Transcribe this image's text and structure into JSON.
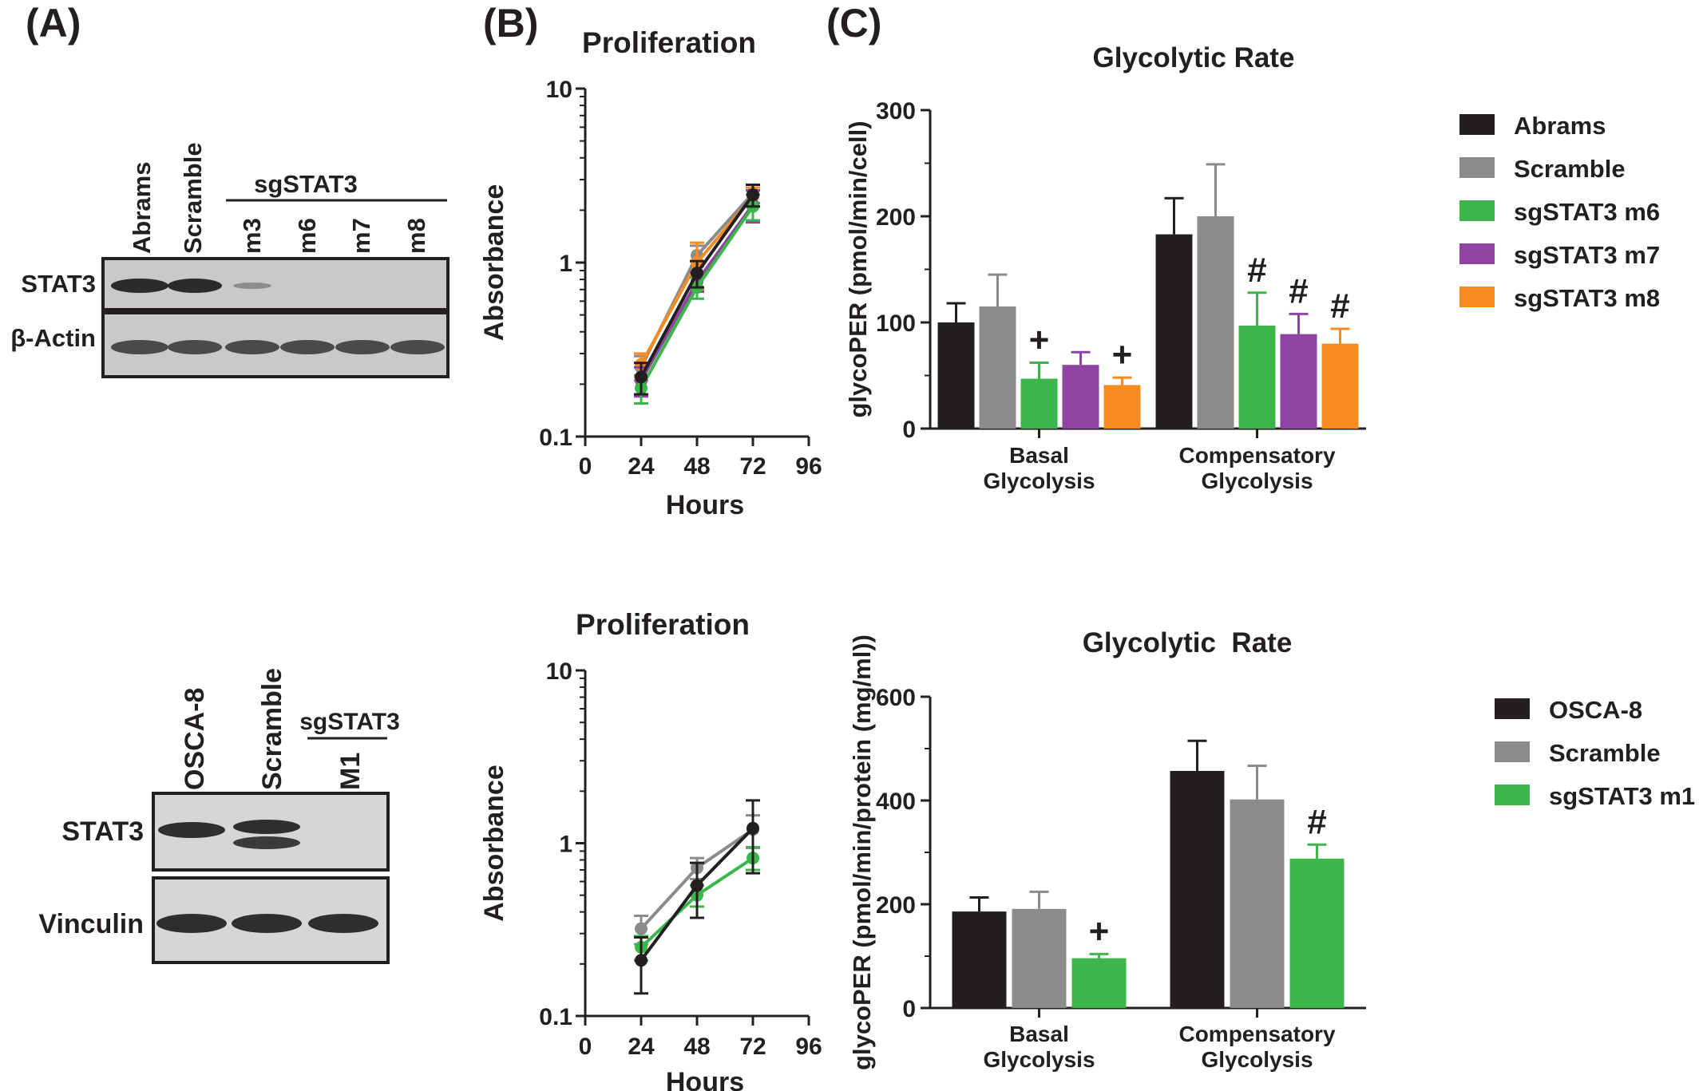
{
  "panel_labels": [
    "(A)",
    "(B)",
    "(C)"
  ],
  "blot_top": {
    "lane_labels": [
      "Abrams",
      "Scramble",
      "m3",
      "m6",
      "m7",
      "m8"
    ],
    "group_label": "sgSTAT3",
    "row_labels": [
      "STAT3",
      "β-Actin"
    ]
  },
  "blot_bottom": {
    "lane_labels": [
      "OSCA-8",
      "Scramble",
      "M1"
    ],
    "group_label": "sgSTAT3",
    "row_labels": [
      "STAT3",
      "Vinculin"
    ]
  },
  "colors": {
    "black": "#231f20",
    "gray": "#8a8b8b",
    "green": "#3cb64a",
    "purple": "#8e44a0",
    "orange": "#f68b1f"
  },
  "chart_data": [
    {
      "id": "proliferation_top",
      "type": "line",
      "title": "Proliferation",
      "xlabel": "Hours",
      "ylabel": "Absorbance",
      "xlim": [
        0,
        96
      ],
      "xticks": [
        0,
        24,
        48,
        72,
        96
      ],
      "ylim": [
        0.1,
        10
      ],
      "yscale": "log",
      "yticks": [
        0.1,
        1,
        10
      ],
      "yticklabels": [
        "0.1",
        "1",
        "10"
      ],
      "x": [
        24,
        48,
        72
      ],
      "series": [
        {
          "color": "#8a8b8b",
          "values": [
            0.25,
            1.1,
            2.5
          ],
          "err": [
            0.04,
            0.15,
            0.3
          ]
        },
        {
          "color": "#f68b1f",
          "values": [
            0.26,
            1.0,
            2.4
          ],
          "err": [
            0.04,
            0.3,
            0.3
          ]
        },
        {
          "color": "#8e44a0",
          "values": [
            0.21,
            0.78,
            2.15
          ],
          "err": [
            0.04,
            0.1,
            0.45
          ]
        },
        {
          "color": "#3cb64a",
          "values": [
            0.19,
            0.72,
            2.1
          ],
          "err": [
            0.035,
            0.1,
            0.35
          ]
        },
        {
          "color": "#231f20",
          "values": [
            0.22,
            0.87,
            2.45
          ],
          "err": [
            0.045,
            0.15,
            0.35
          ]
        }
      ]
    },
    {
      "id": "glycolytic_top",
      "type": "bar",
      "title": "Glycolytic Rate",
      "ylabel": "glycoPER (pmol/min/cell)",
      "ylim": [
        0,
        300
      ],
      "yticks": [
        0,
        100,
        200,
        300
      ],
      "categories": [
        "Basal\nGlycolysis",
        "Compensatory\nGlycolysis"
      ],
      "legend_position": "right",
      "series": [
        {
          "name": "Abrams",
          "color": "#231f20",
          "values": [
            100,
            183
          ],
          "err": [
            18,
            34
          ]
        },
        {
          "name": "Scramble",
          "color": "#8a8b8b",
          "values": [
            115,
            200
          ],
          "err": [
            30,
            49
          ]
        },
        {
          "name": "sgSTAT3 m6",
          "color": "#3cb64a",
          "values": [
            47,
            97
          ],
          "err": [
            15,
            31
          ]
        },
        {
          "name": "sgSTAT3 m7",
          "color": "#8e44a0",
          "values": [
            60,
            89
          ],
          "err": [
            12,
            19
          ]
        },
        {
          "name": "sgSTAT3 m8",
          "color": "#f68b1f",
          "values": [
            41,
            80
          ],
          "err": [
            7,
            14
          ]
        }
      ],
      "annotations": [
        {
          "series": 2,
          "category": 0,
          "text": "+"
        },
        {
          "series": 4,
          "category": 0,
          "text": "+"
        },
        {
          "series": 2,
          "category": 1,
          "text": "#"
        },
        {
          "series": 3,
          "category": 1,
          "text": "#"
        },
        {
          "series": 4,
          "category": 1,
          "text": "#"
        }
      ]
    },
    {
      "id": "proliferation_bottom",
      "type": "line",
      "title": "Proliferation",
      "xlabel": "Hours",
      "ylabel": "Absorbance",
      "xlim": [
        0,
        96
      ],
      "xticks": [
        0,
        24,
        48,
        72,
        96
      ],
      "ylim": [
        0.1,
        10
      ],
      "yscale": "log",
      "yticks": [
        0.1,
        1,
        10
      ],
      "yticklabels": [
        "0.1",
        "1",
        "10"
      ],
      "x": [
        24,
        48,
        72
      ],
      "series": [
        {
          "color": "#8a8b8b",
          "values": [
            0.32,
            0.72,
            1.2
          ],
          "err": [
            0.06,
            0.1,
            0.25
          ]
        },
        {
          "color": "#3cb64a",
          "values": [
            0.25,
            0.5,
            0.82
          ],
          "err": [
            0.04,
            0.07,
            0.12
          ]
        },
        {
          "color": "#231f20",
          "values": [
            0.21,
            0.57,
            1.22
          ],
          "err": [
            0.075,
            0.2,
            0.55
          ]
        }
      ]
    },
    {
      "id": "glycolytic_bottom",
      "type": "bar",
      "title": "Glycolytic  Rate",
      "ylabel": "glycoPER (pmol/min/protein (mg/ml))",
      "ylim": [
        0,
        600
      ],
      "yticks": [
        0,
        200,
        400,
        600
      ],
      "categories": [
        "Basal\nGlycolysis",
        "Compensatory\nGlycolysis"
      ],
      "legend_position": "right",
      "series": [
        {
          "name": "OSCA-8",
          "color": "#231f20",
          "values": [
            186,
            457
          ],
          "err": [
            27,
            58
          ]
        },
        {
          "name": "Scramble",
          "color": "#8a8b8b",
          "values": [
            191,
            402
          ],
          "err": [
            33,
            65
          ]
        },
        {
          "name": "sgSTAT3 m1",
          "color": "#3cb64a",
          "values": [
            96,
            288
          ],
          "err": [
            8,
            27
          ]
        }
      ],
      "annotations": [
        {
          "series": 2,
          "category": 0,
          "text": "+"
        },
        {
          "series": 2,
          "category": 1,
          "text": "#"
        }
      ]
    }
  ]
}
